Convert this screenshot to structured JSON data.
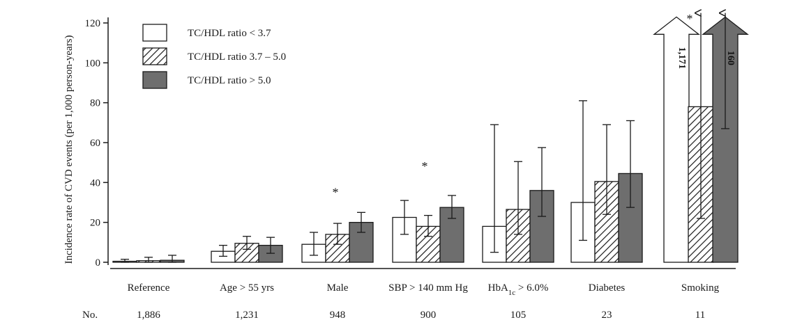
{
  "chart_data": {
    "type": "bar",
    "ylabel": "Incidence rate of CVD events (per 1,000 person-years)",
    "ylim": [
      0,
      120
    ],
    "yticks": [
      0,
      20,
      40,
      60,
      80,
      100,
      120
    ],
    "categories": [
      "Reference",
      "Age > 55 yrs",
      "Male",
      "SBP > 140 mm Hg",
      "HbA1c > 6.0%",
      "Diabetes",
      "Smoking"
    ],
    "categories_display": [
      {
        "main": "Reference",
        "sub": "",
        "tail": ""
      },
      {
        "main": "Age > 55 yrs",
        "sub": "",
        "tail": ""
      },
      {
        "main": "Male",
        "sub": "",
        "tail": ""
      },
      {
        "main": "SBP > 140 mm Hg",
        "sub": "",
        "tail": ""
      },
      {
        "main": "HbA",
        "sub": "1c",
        "tail": " > 6.0%"
      },
      {
        "main": "Diabetes",
        "sub": "",
        "tail": ""
      },
      {
        "main": "Smoking",
        "sub": "",
        "tail": ""
      }
    ],
    "counts_label": "No.",
    "counts": [
      "1,886",
      "1,231",
      "948",
      "900",
      "105",
      "23",
      "11"
    ],
    "series": [
      {
        "name": "TC/HDL ratio < 3.7",
        "fill": "white",
        "values": [
          0.5,
          5.5,
          9,
          22.5,
          18,
          30,
          115
        ],
        "err_low": [
          0,
          3,
          3.5,
          14,
          5,
          11,
          null
        ],
        "err_high": [
          1.5,
          8.5,
          15,
          31,
          69,
          81,
          null
        ],
        "bar_label": [
          "",
          "",
          "",
          "",
          "",
          "",
          "1,171"
        ],
        "truncated": [
          false,
          false,
          false,
          false,
          false,
          false,
          true
        ]
      },
      {
        "name": "TC/HDL ratio 3.7 – 5.0",
        "fill": "hatched",
        "values": [
          0.8,
          9.5,
          14,
          18,
          26.5,
          40.5,
          78
        ],
        "err_low": [
          0,
          6.5,
          9,
          13,
          14,
          24,
          22
        ],
        "err_high": [
          2.5,
          13,
          19.5,
          23.5,
          50.5,
          69,
          125
        ],
        "bar_label": [
          "",
          "",
          "",
          "",
          "",
          "",
          ""
        ],
        "truncated": [
          false,
          false,
          false,
          false,
          false,
          false,
          false
        ]
      },
      {
        "name": "TC/HDL ratio > 5.0",
        "fill": "gray",
        "values": [
          1,
          8.5,
          20,
          27.5,
          36,
          44.5,
          115
        ],
        "err_low": [
          0,
          4.5,
          15,
          22,
          23,
          27.5,
          67
        ],
        "err_high": [
          3.5,
          12.5,
          25,
          33.5,
          57.5,
          71,
          125
        ],
        "bar_label": [
          "",
          "",
          "",
          "",
          "",
          "",
          "160"
        ],
        "truncated": [
          false,
          false,
          false,
          false,
          false,
          false,
          true
        ]
      }
    ],
    "significance": [
      {
        "category": "Male",
        "symbol": "*"
      },
      {
        "category": "SBP > 140 mm Hg",
        "symbol": "*"
      },
      {
        "category": "Smoking",
        "symbol": "*"
      }
    ],
    "colors": {
      "gray": "#6e6e6e",
      "outline": "#1a1a1a",
      "hatch": "#1a1a1a"
    },
    "legend_position": "top-left"
  }
}
